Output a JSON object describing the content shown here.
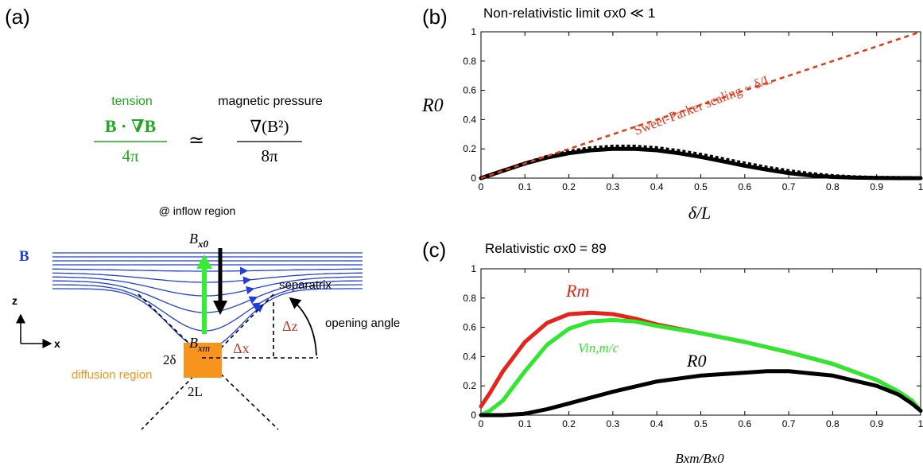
{
  "panel_a": {
    "label": "(a)",
    "tension_label": "tension",
    "tension_numerator": "B · ∇B",
    "tension_denominator": "4π",
    "approx_symbol": "≃",
    "pressure_label": "magnetic pressure",
    "pressure_numerator": "∇(B²)",
    "pressure_denominator": "8π",
    "inflow_label": "@ inflow region",
    "b_label": "B",
    "bx0_label": "Bx0",
    "bxm_label": "Bxm",
    "separatrix_label": "separatrix",
    "opening_angle_label": "opening angle",
    "delta_x_label": "Δx",
    "delta_z_label": "Δz",
    "two_delta_label": "2δ",
    "two_l_label": "2L",
    "diffusion_label": "diffusion region",
    "axis_z_label": "z",
    "axis_x_label": "x",
    "colors": {
      "tension": "#1fa81f",
      "field": "#1f3fe0",
      "diffusion": "#f7941d",
      "delta": "#c0392b",
      "green_arrow": "#33ee33"
    }
  },
  "chart_data": [
    {
      "type": "line",
      "panel": "(b)",
      "title": "Non-relativistic limit  σx0 ≪ 1",
      "xlabel": "δ/L",
      "ylabel": "R0",
      "xlim": [
        0,
        1
      ],
      "ylim": [
        0,
        1
      ],
      "xticks": [
        "0",
        "0.1",
        "0.2",
        "0.3",
        "0.4",
        "0.5",
        "0.6",
        "0.7",
        "0.8",
        "0.9",
        "1"
      ],
      "yticks": [
        "0",
        "0.2",
        "0.4",
        "0.6",
        "0.8",
        "1"
      ],
      "annotation": "Sweet-Parker scaling ~ δ/L",
      "series": [
        {
          "style": "solid",
          "color": "#000000",
          "x": [
            0,
            0.05,
            0.1,
            0.15,
            0.2,
            0.25,
            0.3,
            0.35,
            0.4,
            0.45,
            0.5,
            0.55,
            0.6,
            0.65,
            0.7,
            0.75,
            0.8,
            0.85,
            0.9,
            0.95,
            1
          ],
          "y": [
            0,
            0.05,
            0.1,
            0.14,
            0.17,
            0.19,
            0.2,
            0.2,
            0.19,
            0.17,
            0.145,
            0.115,
            0.085,
            0.058,
            0.035,
            0.018,
            0.008,
            0.003,
            0.001,
            0,
            0
          ]
        },
        {
          "style": "dotted",
          "color": "#000000",
          "x": [
            0,
            0.05,
            0.1,
            0.15,
            0.2,
            0.25,
            0.3,
            0.35,
            0.4,
            0.45,
            0.5,
            0.55,
            0.6,
            0.65,
            0.7,
            0.75,
            0.8,
            0.85,
            0.9,
            0.95,
            1
          ],
          "y": [
            0,
            0.05,
            0.1,
            0.145,
            0.18,
            0.205,
            0.215,
            0.215,
            0.205,
            0.185,
            0.16,
            0.13,
            0.1,
            0.072,
            0.048,
            0.028,
            0.014,
            0.006,
            0.002,
            0.001,
            0
          ]
        },
        {
          "style": "dashed",
          "color": "#e8381c",
          "x": [
            0,
            1
          ],
          "y": [
            0,
            1
          ]
        }
      ]
    },
    {
      "type": "line",
      "panel": "(c)",
      "title": "Relativistic  σx0 = 89",
      "xlabel": "Bxm/Bx0",
      "ylabel": "",
      "xlim": [
        0,
        1
      ],
      "ylim": [
        0,
        1
      ],
      "xticks": [
        "0",
        "0.1",
        "0.2",
        "0.3",
        "0.4",
        "0.5",
        "0.6",
        "0.7",
        "0.8",
        "0.9",
        "1"
      ],
      "yticks": [
        "0",
        "0.2",
        "0.4",
        "0.6",
        "0.8",
        "1"
      ],
      "series": [
        {
          "name": "Rm",
          "color": "#e8231c",
          "x": [
            0,
            0.02,
            0.05,
            0.1,
            0.15,
            0.2,
            0.25,
            0.3,
            0.35,
            0.4,
            0.5,
            0.6,
            0.7,
            0.8,
            0.9,
            0.95,
            0.98,
            1
          ],
          "y": [
            0.06,
            0.15,
            0.3,
            0.5,
            0.63,
            0.69,
            0.7,
            0.69,
            0.66,
            0.62,
            0.56,
            0.5,
            0.43,
            0.35,
            0.24,
            0.16,
            0.1,
            0.03
          ]
        },
        {
          "name": "Vin,m/c",
          "color": "#2ee82e",
          "x": [
            0,
            0.02,
            0.05,
            0.1,
            0.15,
            0.2,
            0.25,
            0.3,
            0.35,
            0.4,
            0.5,
            0.6,
            0.7,
            0.8,
            0.9,
            0.95,
            0.98,
            1
          ],
          "y": [
            0,
            0.03,
            0.1,
            0.3,
            0.48,
            0.59,
            0.64,
            0.65,
            0.64,
            0.61,
            0.56,
            0.5,
            0.43,
            0.35,
            0.24,
            0.16,
            0.1,
            0.03
          ]
        },
        {
          "name": "R0",
          "color": "#000000",
          "x": [
            0,
            0.05,
            0.1,
            0.15,
            0.2,
            0.3,
            0.4,
            0.5,
            0.6,
            0.65,
            0.7,
            0.8,
            0.9,
            0.95,
            0.98,
            1
          ],
          "y": [
            0,
            0,
            0.01,
            0.04,
            0.08,
            0.16,
            0.23,
            0.27,
            0.29,
            0.3,
            0.3,
            0.27,
            0.2,
            0.14,
            0.08,
            0.03
          ]
        }
      ]
    }
  ]
}
